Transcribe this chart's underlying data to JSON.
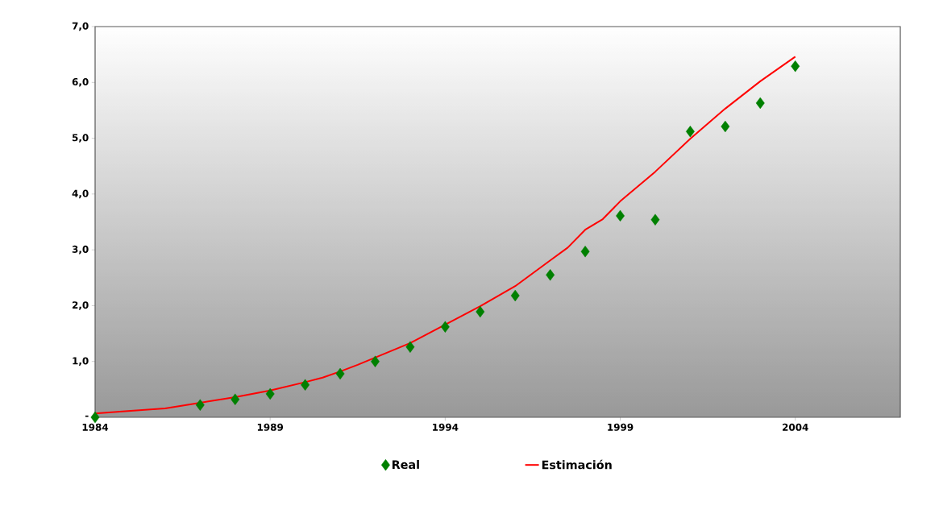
{
  "chart_data": {
    "type": "scatter",
    "x": [
      1984,
      1987,
      1988,
      1989,
      1990,
      1991,
      1992,
      1993,
      1994,
      1995,
      1996,
      1997,
      1998,
      1999,
      2000,
      2001,
      2002,
      2003,
      2004
    ],
    "series": [
      {
        "name": "Real",
        "marker": "diamond",
        "color": "#008000",
        "values": [
          0.0,
          0.22,
          0.32,
          0.42,
          0.58,
          0.78,
          1.0,
          1.26,
          1.62,
          1.89,
          2.18,
          2.55,
          2.97,
          3.61,
          3.54,
          5.12,
          5.21,
          5.63,
          6.29
        ]
      },
      {
        "name": "Estimación",
        "type": "line",
        "color": "#ff0000",
        "x": [
          1984,
          1986,
          1987,
          1988,
          1989,
          1990,
          1990.5,
          1991,
          1991.5,
          1992,
          1993,
          1994,
          1995,
          1996,
          1997,
          1997.5,
          1998,
          1998.5,
          1999,
          2000,
          2001,
          2002,
          2003,
          2004
        ],
        "values": [
          0.07,
          0.16,
          0.26,
          0.36,
          0.48,
          0.63,
          0.71,
          0.82,
          0.94,
          1.07,
          1.33,
          1.66,
          1.99,
          2.35,
          2.81,
          3.04,
          3.36,
          3.55,
          3.87,
          4.4,
          4.99,
          5.53,
          6.02,
          6.46
        ]
      }
    ],
    "xlim": [
      1984,
      2007
    ],
    "xticks": [
      1984,
      1989,
      1994,
      1999,
      2004
    ],
    "ylim": [
      0,
      7
    ],
    "yticks": [
      {
        "value": 0,
        "label": "-"
      },
      {
        "value": 1,
        "label": "1,0"
      },
      {
        "value": 2,
        "label": "2,0"
      },
      {
        "value": 3,
        "label": "3,0"
      },
      {
        "value": 4,
        "label": "4,0"
      },
      {
        "value": 5,
        "label": "5,0"
      },
      {
        "value": 6,
        "label": "6,0"
      },
      {
        "value": 7,
        "label": "7,0"
      }
    ],
    "legend": "bottom"
  }
}
